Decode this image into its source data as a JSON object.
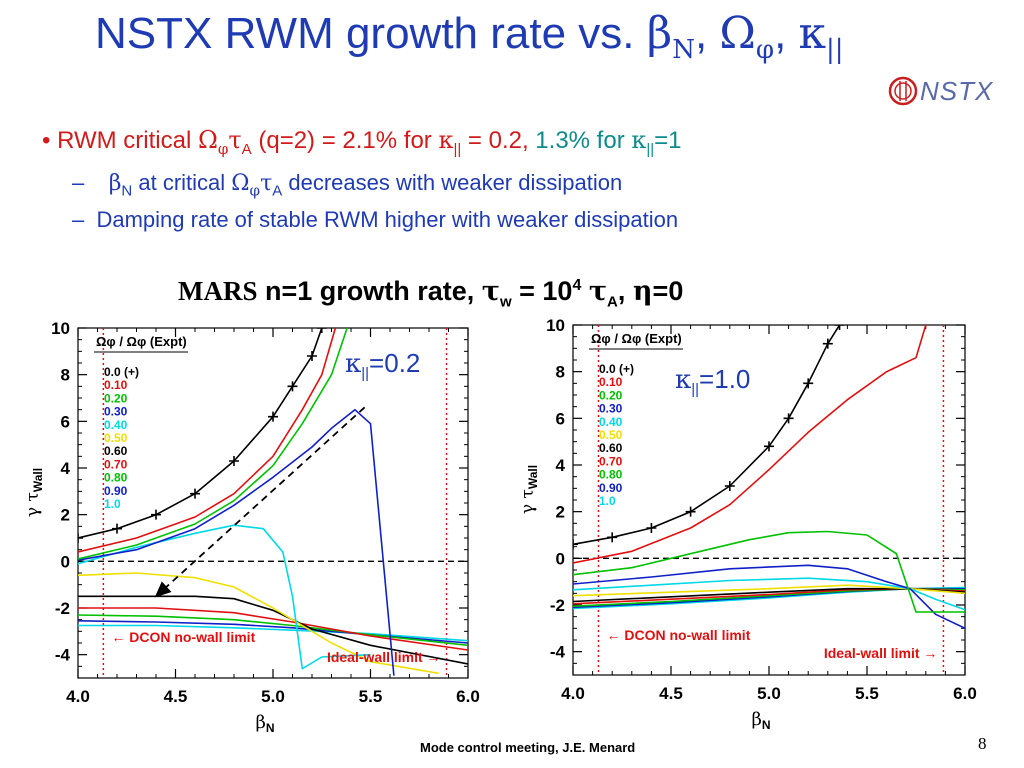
{
  "slide": {
    "title_main": "NSTX RWM growth rate vs. ",
    "title_beta": "β",
    "title_beta_sub": "N",
    "title_sep1": ", ",
    "title_omega": "Ω",
    "title_omega_sub": "φ",
    "title_sep2": ", ",
    "title_kappa": "κ",
    "title_kappa_sub": "||",
    "logo_text": "NSTX",
    "bullet_dot": "•",
    "bullet_a": "RWM critical ",
    "bullet_omega": "Ω",
    "bullet_phi": "φ",
    "bullet_tau": "τ",
    "bullet_A": "A",
    "bullet_b": " (q=2) = 2.1% for ",
    "bullet_kappa": "κ",
    "bullet_par": "||",
    "bullet_c": " = 0.2,",
    "bullet_d": " 1.3% for ",
    "bullet_kappa2": "κ",
    "bullet_par2": "||",
    "bullet_e": "=1",
    "sub1_dash": "–",
    "sub1_beta": "β",
    "sub1_N": "N",
    "sub1_a": " at critical ",
    "sub1_omega": "Ω",
    "sub1_phi": "φ",
    "sub1_tau": "τ",
    "sub1_A": "A",
    "sub1_b": " decreases with weaker dissipation",
    "sub2_dash": "–",
    "sub2_text": "Damping rate of stable RWM higher with weaker dissipation",
    "mars_a": "MARS",
    "mars_b": " n=1 growth rate, ",
    "mars_tau": "τ",
    "mars_w": "w",
    "mars_c": " = 10",
    "mars_exp": "4",
    "mars_d": " ",
    "mars_tau2": "τ",
    "mars_A": "A",
    "mars_e": ", ",
    "mars_eta": "η",
    "mars_f": "=0",
    "footer": "Mode control meeting, J.E. Menard",
    "page_number": "8"
  },
  "chart_data": [
    {
      "type": "line",
      "panel_label": "κ||=0.2",
      "xlabel": "βN",
      "ylabel": "γ τWall",
      "xlim": [
        4.0,
        6.0
      ],
      "ylim": [
        -5,
        10
      ],
      "xticks": [
        "4.0",
        "4.5",
        "5.0",
        "5.5",
        "6.0"
      ],
      "yticks": [
        "-4",
        "-2",
        "0",
        "2",
        "4",
        "6",
        "8",
        "10"
      ],
      "legend_title": "Ωφ / Ωφ (Expt)",
      "annotations": {
        "dcon": "← DCON no-wall limit",
        "ideal": "Ideal-wall limit →"
      },
      "limits": {
        "dcon_beta": 4.13,
        "ideal_beta": 5.89
      },
      "series": [
        {
          "name": "0.0 (+)",
          "color": "#000000",
          "markers": true,
          "points": [
            [
              4.0,
              1.0
            ],
            [
              4.2,
              1.4
            ],
            [
              4.4,
              2.0
            ],
            [
              4.6,
              2.9
            ],
            [
              4.8,
              4.3
            ],
            [
              5.0,
              6.2
            ],
            [
              5.1,
              7.5
            ],
            [
              5.2,
              8.8
            ],
            [
              5.25,
              10.0
            ]
          ]
        },
        {
          "name": "0.10",
          "color": "#e01010",
          "points": [
            [
              4.0,
              0.4
            ],
            [
              4.3,
              1.0
            ],
            [
              4.6,
              1.9
            ],
            [
              4.8,
              2.9
            ],
            [
              5.0,
              4.5
            ],
            [
              5.15,
              6.5
            ],
            [
              5.25,
              8.0
            ],
            [
              5.32,
              10.0
            ]
          ]
        },
        {
          "name": "0.20",
          "color": "#00c000",
          "points": [
            [
              4.0,
              0.1
            ],
            [
              4.3,
              0.7
            ],
            [
              4.6,
              1.6
            ],
            [
              4.8,
              2.6
            ],
            [
              5.0,
              4.1
            ],
            [
              5.15,
              5.9
            ],
            [
              5.3,
              8.0
            ],
            [
              5.38,
              10.0
            ]
          ]
        },
        {
          "name": "0.30",
          "color": "#1020c8",
          "points": [
            [
              4.0,
              0.05
            ],
            [
              4.3,
              0.5
            ],
            [
              4.6,
              1.4
            ],
            [
              4.8,
              2.4
            ],
            [
              5.0,
              3.6
            ],
            [
              5.2,
              4.9
            ],
            [
              5.3,
              5.7
            ],
            [
              5.42,
              6.5
            ],
            [
              5.5,
              5.9
            ],
            [
              5.62,
              -4.9
            ]
          ]
        },
        {
          "name": "0.40",
          "color": "#00d8e8",
          "points": [
            [
              4.0,
              -0.1
            ],
            [
              4.3,
              0.6
            ],
            [
              4.6,
              1.2
            ],
            [
              4.8,
              1.55
            ],
            [
              4.95,
              1.4
            ],
            [
              5.05,
              0.4
            ],
            [
              5.1,
              -1.5
            ],
            [
              5.15,
              -4.6
            ],
            [
              5.25,
              -4.1
            ],
            [
              5.5,
              -4.0
            ]
          ]
        },
        {
          "name": "0.50",
          "color": "#f0e000",
          "points": [
            [
              4.0,
              -0.6
            ],
            [
              4.3,
              -0.5
            ],
            [
              4.6,
              -0.7
            ],
            [
              4.8,
              -1.1
            ],
            [
              5.0,
              -2.0
            ],
            [
              5.1,
              -2.5
            ],
            [
              5.3,
              -3.5
            ],
            [
              5.5,
              -4.3
            ],
            [
              5.85,
              -4.8
            ]
          ]
        },
        {
          "name": "0.60",
          "color": "#000000",
          "points": [
            [
              4.0,
              -1.5
            ],
            [
              4.3,
              -1.5
            ],
            [
              4.6,
              -1.5
            ],
            [
              4.8,
              -1.6
            ],
            [
              5.0,
              -2.1
            ],
            [
              5.2,
              -2.9
            ],
            [
              5.5,
              -3.6
            ],
            [
              6.0,
              -4.4
            ]
          ]
        },
        {
          "name": "0.70",
          "color": "#e01010",
          "points": [
            [
              4.0,
              -2.0
            ],
            [
              4.4,
              -2.0
            ],
            [
              4.8,
              -2.2
            ],
            [
              5.1,
              -2.6
            ],
            [
              5.5,
              -3.2
            ],
            [
              6.0,
              -3.8
            ]
          ]
        },
        {
          "name": "0.80",
          "color": "#00c000",
          "points": [
            [
              4.0,
              -2.3
            ],
            [
              4.4,
              -2.35
            ],
            [
              4.8,
              -2.5
            ],
            [
              5.1,
              -2.75
            ],
            [
              5.5,
              -3.15
            ],
            [
              6.0,
              -3.6
            ]
          ]
        },
        {
          "name": "0.90",
          "color": "#1020c8",
          "points": [
            [
              4.0,
              -2.55
            ],
            [
              4.4,
              -2.6
            ],
            [
              4.8,
              -2.7
            ],
            [
              5.1,
              -2.85
            ],
            [
              5.5,
              -3.15
            ],
            [
              6.0,
              -3.5
            ]
          ]
        },
        {
          "name": "1.0",
          "color": "#00d8e8",
          "points": [
            [
              4.0,
              -2.75
            ],
            [
              4.4,
              -2.75
            ],
            [
              4.8,
              -2.85
            ],
            [
              5.1,
              -2.95
            ],
            [
              5.5,
              -3.1
            ],
            [
              6.0,
              -3.4
            ]
          ]
        }
      ],
      "arrow": {
        "from": [
          5.47,
          6.6
        ],
        "to": [
          4.4,
          -1.5
        ]
      }
    },
    {
      "type": "line",
      "panel_label": "κ||=1.0",
      "xlabel": "βN",
      "ylabel": "γ τWall",
      "xlim": [
        4.0,
        6.0
      ],
      "ylim": [
        -5,
        10
      ],
      "xticks": [
        "4.0",
        "4.5",
        "5.0",
        "5.5",
        "6.0"
      ],
      "yticks": [
        "-4",
        "-2",
        "0",
        "2",
        "4",
        "6",
        "8",
        "10"
      ],
      "legend_title": "Ωφ / Ωφ (Expt)",
      "annotations": {
        "dcon": "← DCON no-wall limit",
        "ideal": "Ideal-wall limit →"
      },
      "limits": {
        "dcon_beta": 4.13,
        "ideal_beta": 5.89
      },
      "series": [
        {
          "name": "0.0 (+)",
          "color": "#000000",
          "markers": true,
          "points": [
            [
              4.0,
              0.6
            ],
            [
              4.2,
              0.9
            ],
            [
              4.4,
              1.3
            ],
            [
              4.6,
              2.0
            ],
            [
              4.8,
              3.1
            ],
            [
              5.0,
              4.8
            ],
            [
              5.1,
              6.0
            ],
            [
              5.2,
              7.5
            ],
            [
              5.3,
              9.2
            ],
            [
              5.36,
              10.0
            ]
          ]
        },
        {
          "name": "0.10",
          "color": "#e01010",
          "points": [
            [
              4.0,
              -0.2
            ],
            [
              4.3,
              0.3
            ],
            [
              4.6,
              1.3
            ],
            [
              4.8,
              2.3
            ],
            [
              5.0,
              3.8
            ],
            [
              5.2,
              5.4
            ],
            [
              5.4,
              6.8
            ],
            [
              5.6,
              8.0
            ],
            [
              5.75,
              8.6
            ],
            [
              5.8,
              10.0
            ]
          ]
        },
        {
          "name": "0.20",
          "color": "#00c000",
          "points": [
            [
              4.0,
              -0.7
            ],
            [
              4.3,
              -0.4
            ],
            [
              4.6,
              0.2
            ],
            [
              4.9,
              0.8
            ],
            [
              5.1,
              1.1
            ],
            [
              5.3,
              1.15
            ],
            [
              5.5,
              1.0
            ],
            [
              5.65,
              0.2
            ],
            [
              5.75,
              -2.3
            ],
            [
              6.0,
              -2.3
            ]
          ]
        },
        {
          "name": "0.30",
          "color": "#1020c8",
          "points": [
            [
              4.0,
              -1.1
            ],
            [
              4.4,
              -0.8
            ],
            [
              4.8,
              -0.45
            ],
            [
              5.2,
              -0.3
            ],
            [
              5.4,
              -0.45
            ],
            [
              5.6,
              -1.0
            ],
            [
              5.72,
              -1.3
            ],
            [
              5.85,
              -2.4
            ],
            [
              6.0,
              -3.0
            ]
          ]
        },
        {
          "name": "0.40",
          "color": "#00d8e8",
          "points": [
            [
              4.0,
              -1.35
            ],
            [
              4.4,
              -1.15
            ],
            [
              4.8,
              -0.95
            ],
            [
              5.2,
              -0.85
            ],
            [
              5.5,
              -1.0
            ],
            [
              5.72,
              -1.3
            ],
            [
              5.85,
              -1.75
            ],
            [
              6.0,
              -2.2
            ]
          ]
        },
        {
          "name": "0.50",
          "color": "#f0e000",
          "points": [
            [
              4.0,
              -1.6
            ],
            [
              4.5,
              -1.45
            ],
            [
              5.0,
              -1.3
            ],
            [
              5.4,
              -1.15
            ],
            [
              5.72,
              -1.3
            ],
            [
              6.0,
              -1.5
            ]
          ]
        },
        {
          "name": "0.60",
          "color": "#000000",
          "points": [
            [
              4.0,
              -1.85
            ],
            [
              4.5,
              -1.65
            ],
            [
              5.0,
              -1.45
            ],
            [
              5.4,
              -1.3
            ],
            [
              5.72,
              -1.3
            ],
            [
              6.0,
              -1.45
            ]
          ]
        },
        {
          "name": "0.70",
          "color": "#e01010",
          "points": [
            [
              4.0,
              -1.95
            ],
            [
              4.5,
              -1.75
            ],
            [
              5.0,
              -1.55
            ],
            [
              5.4,
              -1.35
            ],
            [
              5.72,
              -1.3
            ],
            [
              6.0,
              -1.4
            ]
          ]
        },
        {
          "name": "0.80",
          "color": "#00c000",
          "points": [
            [
              4.0,
              -2.05
            ],
            [
              4.5,
              -1.85
            ],
            [
              5.0,
              -1.6
            ],
            [
              5.4,
              -1.4
            ],
            [
              5.72,
              -1.3
            ],
            [
              6.0,
              -1.35
            ]
          ]
        },
        {
          "name": "0.90",
          "color": "#1020c8",
          "points": [
            [
              4.0,
              -2.1
            ],
            [
              4.5,
              -1.9
            ],
            [
              5.0,
              -1.65
            ],
            [
              5.4,
              -1.42
            ],
            [
              5.72,
              -1.3
            ],
            [
              6.0,
              -1.3
            ]
          ]
        },
        {
          "name": "1.0",
          "color": "#00d8e8",
          "points": [
            [
              4.0,
              -2.15
            ],
            [
              4.5,
              -1.95
            ],
            [
              5.0,
              -1.7
            ],
            [
              5.4,
              -1.45
            ],
            [
              5.72,
              -1.3
            ],
            [
              6.0,
              -1.25
            ]
          ]
        }
      ]
    }
  ]
}
